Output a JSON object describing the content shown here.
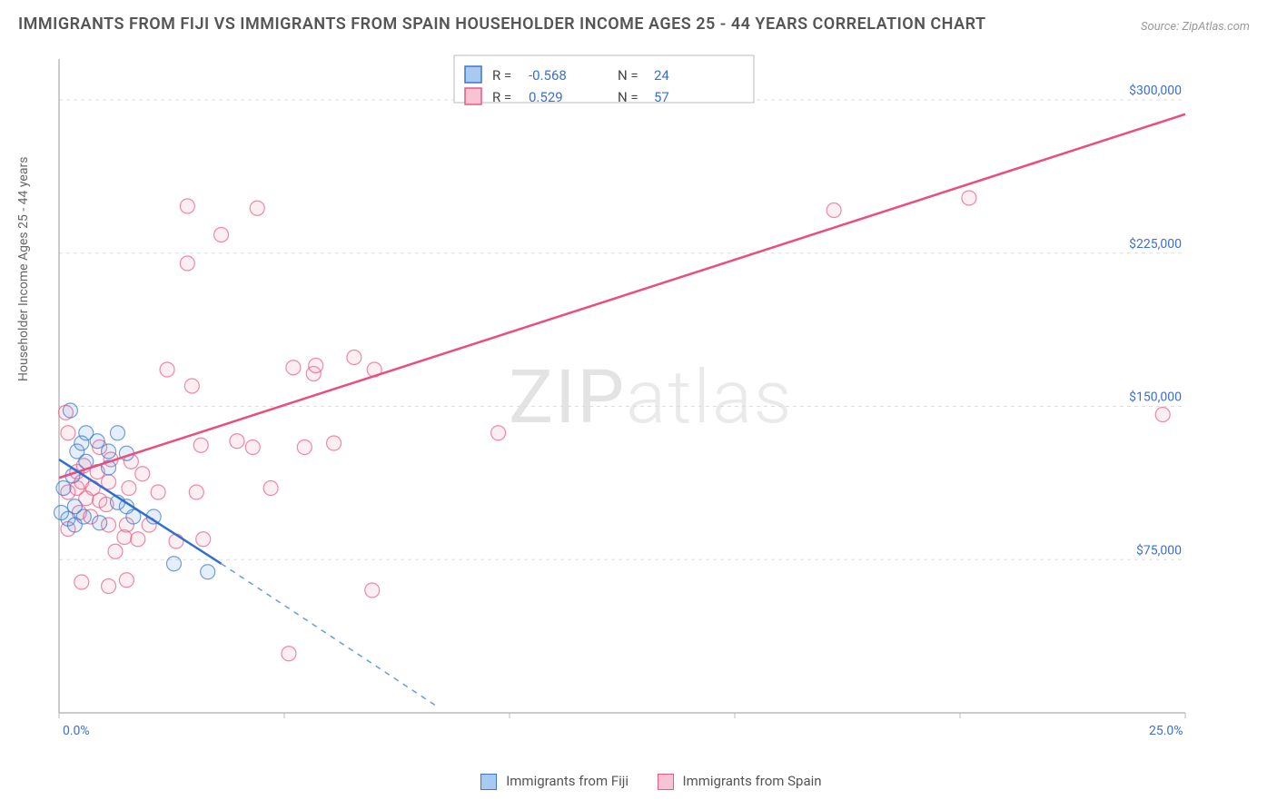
{
  "title": "IMMIGRANTS FROM FIJI VS IMMIGRANTS FROM SPAIN HOUSEHOLDER INCOME AGES 25 - 44 YEARS CORRELATION CHART",
  "source": "Source: ZipAtlas.com",
  "watermark_a": "ZIP",
  "watermark_b": "atlas",
  "ylabel": "Householder Income Ages 25 - 44 years",
  "chart": {
    "type": "scatter",
    "xlim": [
      0,
      25
    ],
    "ylim": [
      0,
      320000
    ],
    "xticks_pct": [
      0,
      5,
      10,
      15,
      20,
      25
    ],
    "xticks_labels": [
      "0.0%",
      "",
      "",
      "",
      "",
      "25.0%"
    ],
    "yticks": [
      75000,
      150000,
      225000,
      300000
    ],
    "yticks_labels": [
      "$75,000",
      "$150,000",
      "$225,000",
      "$300,000"
    ],
    "grid_color": "#dddddd",
    "axis_color": "#999999",
    "background_color": "#ffffff",
    "marker_radius": 8,
    "series": [
      {
        "name": "Immigrants from Fiji",
        "color_fill": "#5294e2",
        "color_stroke": "#3b78c9",
        "line_color": "#2f6fd1",
        "R": "-0.568",
        "N": "24",
        "trend": {
          "x1": 0.0,
          "y1": 124000,
          "x2": 3.6,
          "y2": 73000
        },
        "trend_ext": {
          "x1": 3.6,
          "y1": 73000,
          "x2": 8.4,
          "y2": 3000
        },
        "points": [
          [
            0.25,
            148000
          ],
          [
            0.1,
            110000
          ],
          [
            0.3,
            116000
          ],
          [
            0.4,
            128000
          ],
          [
            0.2,
            95000
          ],
          [
            0.6,
            123000
          ],
          [
            0.6,
            137000
          ],
          [
            0.85,
            133000
          ],
          [
            1.1,
            128000
          ],
          [
            1.3,
            137000
          ],
          [
            0.55,
            96000
          ],
          [
            0.35,
            92000
          ],
          [
            0.5,
            132000
          ],
          [
            0.9,
            93000
          ],
          [
            1.1,
            120000
          ],
          [
            1.5,
            127000
          ],
          [
            1.5,
            101000
          ],
          [
            1.3,
            103000
          ],
          [
            1.65,
            96000
          ],
          [
            2.1,
            96000
          ],
          [
            2.55,
            73000
          ],
          [
            3.3,
            69000
          ],
          [
            0.05,
            98000
          ],
          [
            0.35,
            101000
          ]
        ]
      },
      {
        "name": "Immigrants from Spain",
        "color_fill": "#f08ba6",
        "color_stroke": "#e65a85",
        "line_color": "#e94e7c",
        "R": "0.529",
        "N": "57",
        "trend": {
          "x1": 0.0,
          "y1": 115000,
          "x2": 25.0,
          "y2": 293000
        },
        "points": [
          [
            0.15,
            147000
          ],
          [
            0.2,
            137000
          ],
          [
            0.2,
            108000
          ],
          [
            0.4,
            118000
          ],
          [
            0.4,
            110000
          ],
          [
            0.45,
            98000
          ],
          [
            0.5,
            113000
          ],
          [
            0.55,
            121000
          ],
          [
            0.6,
            105000
          ],
          [
            0.7,
            96000
          ],
          [
            0.75,
            110000
          ],
          [
            0.85,
            118000
          ],
          [
            0.9,
            130000
          ],
          [
            0.9,
            104000
          ],
          [
            1.05,
            102000
          ],
          [
            1.1,
            113000
          ],
          [
            1.1,
            92000
          ],
          [
            1.15,
            124000
          ],
          [
            1.25,
            79000
          ],
          [
            1.45,
            86000
          ],
          [
            1.5,
            92000
          ],
          [
            1.55,
            110000
          ],
          [
            1.6,
            123000
          ],
          [
            1.75,
            85000
          ],
          [
            1.85,
            117000
          ],
          [
            2.0,
            92000
          ],
          [
            2.2,
            108000
          ],
          [
            2.4,
            168000
          ],
          [
            2.6,
            84000
          ],
          [
            2.85,
            248000
          ],
          [
            2.85,
            220000
          ],
          [
            2.95,
            160000
          ],
          [
            3.05,
            108000
          ],
          [
            3.15,
            131000
          ],
          [
            3.2,
            85000
          ],
          [
            3.6,
            234000
          ],
          [
            3.95,
            133000
          ],
          [
            4.3,
            130000
          ],
          [
            4.4,
            247000
          ],
          [
            4.7,
            110000
          ],
          [
            5.1,
            29000
          ],
          [
            5.2,
            169000
          ],
          [
            5.45,
            130000
          ],
          [
            5.65,
            166000
          ],
          [
            5.7,
            170000
          ],
          [
            6.1,
            132000
          ],
          [
            6.55,
            174000
          ],
          [
            6.95,
            60000
          ],
          [
            7.0,
            168000
          ],
          [
            9.75,
            137000
          ],
          [
            17.2,
            246000
          ],
          [
            20.2,
            252000
          ],
          [
            24.5,
            146000
          ],
          [
            0.5,
            64000
          ],
          [
            1.1,
            62000
          ],
          [
            1.5,
            65000
          ],
          [
            0.2,
            90000
          ]
        ]
      }
    ]
  },
  "legend_top": {
    "rows": [
      {
        "swatch": "blue",
        "label_r": "R =",
        "val_r": "-0.568",
        "label_n": "N =",
        "val_n": "24"
      },
      {
        "swatch": "pink",
        "label_r": "R =",
        "val_r": " 0.529",
        "label_n": "N =",
        "val_n": "57"
      }
    ]
  },
  "legend_bottom": {
    "items": [
      {
        "swatch": "blue",
        "label": "Immigrants from Fiji"
      },
      {
        "swatch": "pink",
        "label": "Immigrants from Spain"
      }
    ]
  }
}
